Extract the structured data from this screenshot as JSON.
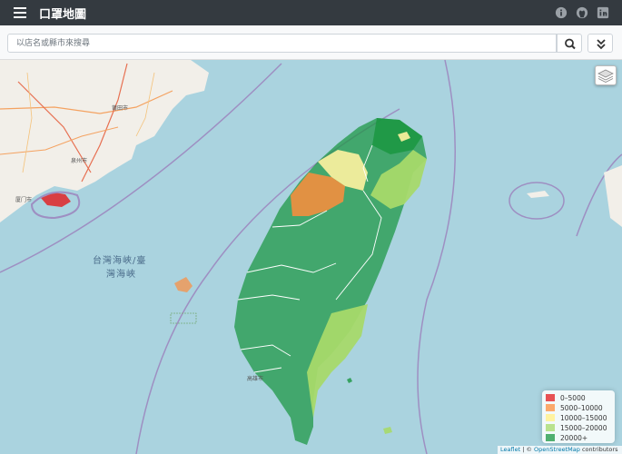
{
  "header": {
    "title": "口罩地圖",
    "icons": [
      "menu-icon",
      "info-icon",
      "github-icon",
      "linkedin-icon"
    ]
  },
  "search": {
    "placeholder": "以店名或縣市來搜尋"
  },
  "map": {
    "strait_label_line1": "台灣海峽/臺",
    "strait_label_line2": "灣海峽",
    "labels": {
      "putian": "莆田市",
      "quanzhou": "泉州市",
      "xiamen": "厦门市",
      "kaohsiung": "高雄市"
    }
  },
  "legend": {
    "items": [
      {
        "label": "0–5000",
        "color": "#e31a1c"
      },
      {
        "label": "5000–10000",
        "color": "#fd8d3c"
      },
      {
        "label": "10000–15000",
        "color": "#fff3a0"
      },
      {
        "label": "15000–20000",
        "color": "#a6d96a"
      },
      {
        "label": "20000+",
        "color": "#1a9641"
      }
    ]
  },
  "attribution": {
    "leaflet": "Leaflet",
    "separator": " | © ",
    "osm": "OpenStreetMap",
    "suffix": " contributors"
  },
  "colors": {
    "header_bg": "#343a40",
    "sea": "#aad3df",
    "land": "#f2efe9"
  }
}
